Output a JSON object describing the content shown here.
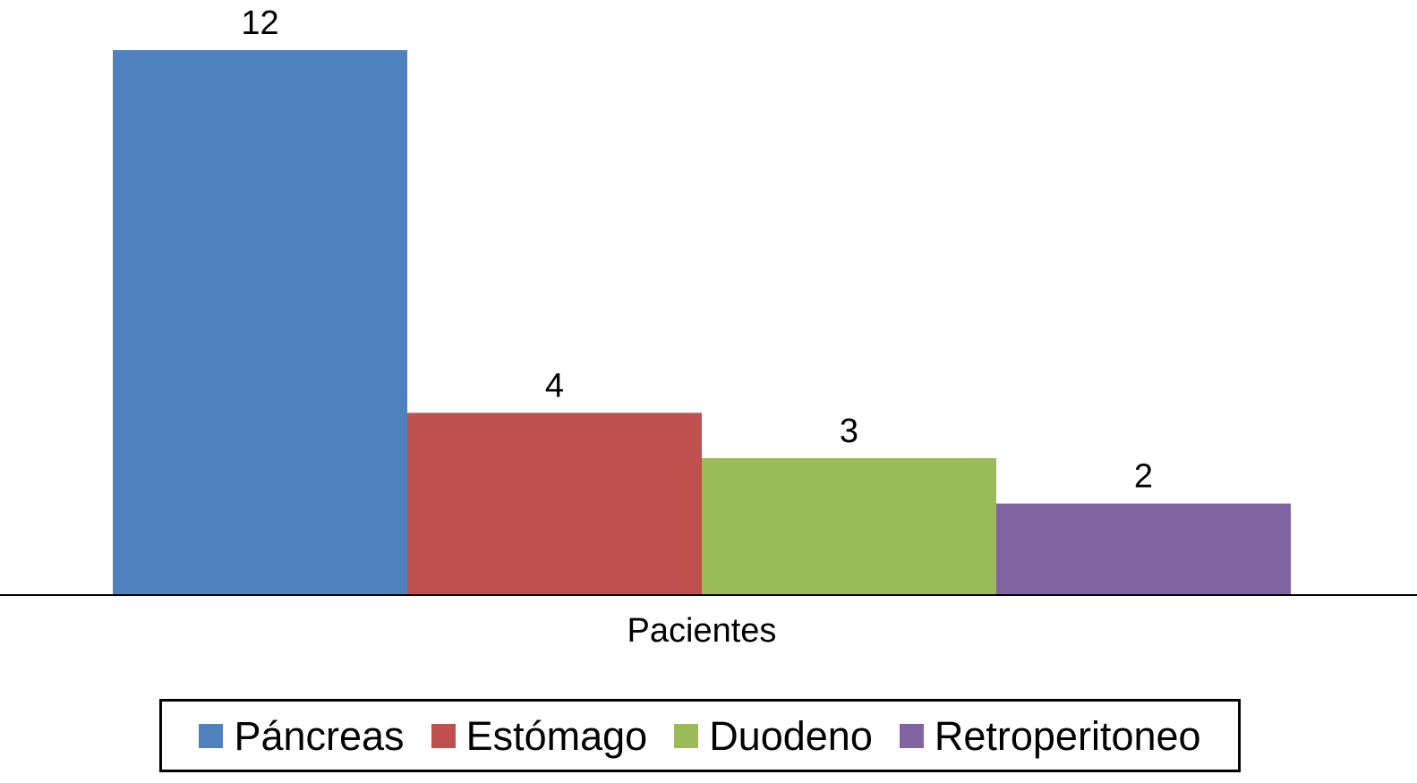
{
  "chart_data": {
    "type": "bar",
    "categories": [
      "Pacientes"
    ],
    "series": [
      {
        "name": "Páncreas",
        "values": [
          12
        ],
        "color": "#4F81BD"
      },
      {
        "name": "Estómago",
        "values": [
          4
        ],
        "color": "#C0504D"
      },
      {
        "name": "Duodeno",
        "values": [
          3
        ],
        "color": "#9BBB59"
      },
      {
        "name": "Retroperitoneo",
        "values": [
          2
        ],
        "color": "#8064A2"
      }
    ],
    "data_labels": [
      "12",
      "4",
      "3",
      "2"
    ],
    "title": "",
    "xlabel": "",
    "ylabel": "",
    "ylim": [
      0,
      12
    ],
    "grid": false,
    "legend_position": "bottom",
    "axis_color": "#000000"
  }
}
